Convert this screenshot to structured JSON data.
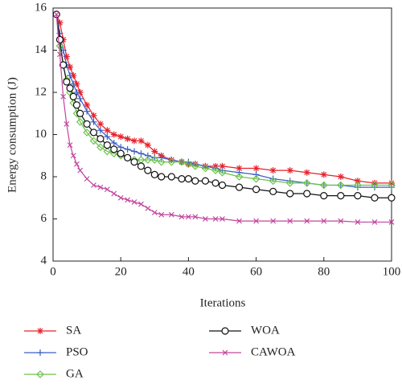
{
  "chart_data": {
    "type": "line",
    "xlabel": "Iterations",
    "ylabel": "Energy consumption (J)",
    "xlim": [
      0,
      100
    ],
    "ylim": [
      4,
      16
    ],
    "xticks": [
      0,
      20,
      40,
      60,
      80,
      100
    ],
    "yticks": [
      4,
      6,
      8,
      10,
      12,
      14,
      16
    ],
    "x": [
      1,
      2,
      3,
      4,
      5,
      6,
      7,
      8,
      10,
      12,
      14,
      16,
      18,
      20,
      22,
      24,
      26,
      28,
      30,
      32,
      35,
      38,
      40,
      42,
      45,
      48,
      50,
      55,
      60,
      65,
      70,
      75,
      80,
      85,
      90,
      95,
      100
    ],
    "series": [
      {
        "name": "SA",
        "color": "#e8202a",
        "marker": "asterisk",
        "values": [
          15.7,
          15.3,
          14.5,
          13.7,
          13.2,
          12.8,
          12.4,
          12.0,
          11.4,
          10.9,
          10.5,
          10.2,
          10.0,
          9.9,
          9.8,
          9.7,
          9.7,
          9.5,
          9.2,
          9.0,
          8.8,
          8.7,
          8.6,
          8.6,
          8.5,
          8.5,
          8.5,
          8.4,
          8.4,
          8.3,
          8.3,
          8.2,
          8.1,
          8.0,
          7.8,
          7.7,
          7.7
        ]
      },
      {
        "name": "PSO",
        "color": "#3a5fc8",
        "marker": "plus",
        "values": [
          15.7,
          14.8,
          14.0,
          13.3,
          12.8,
          12.4,
          12.0,
          11.7,
          11.1,
          10.6,
          10.2,
          9.9,
          9.6,
          9.4,
          9.3,
          9.2,
          9.1,
          9.0,
          8.9,
          8.9,
          8.8,
          8.7,
          8.7,
          8.6,
          8.5,
          8.4,
          8.3,
          8.2,
          8.1,
          7.9,
          7.8,
          7.7,
          7.6,
          7.6,
          7.5,
          7.5,
          7.5
        ]
      },
      {
        "name": "GA",
        "color": "#6cc24a",
        "marker": "diamond",
        "values": [
          15.7,
          14.2,
          13.3,
          12.6,
          12.0,
          11.5,
          11.0,
          10.6,
          10.1,
          9.7,
          9.4,
          9.2,
          9.1,
          9.0,
          8.9,
          8.8,
          8.8,
          8.8,
          8.8,
          8.7,
          8.7,
          8.7,
          8.6,
          8.5,
          8.4,
          8.3,
          8.2,
          8.0,
          7.9,
          7.8,
          7.7,
          7.7,
          7.6,
          7.6,
          7.6,
          7.6,
          7.6
        ]
      },
      {
        "name": "WOA",
        "color": "#111111",
        "marker": "circle",
        "values": [
          15.7,
          14.5,
          13.3,
          12.5,
          12.2,
          11.8,
          11.4,
          11.0,
          10.5,
          10.1,
          9.8,
          9.5,
          9.3,
          9.1,
          8.9,
          8.7,
          8.5,
          8.3,
          8.1,
          8.0,
          8.0,
          7.9,
          7.9,
          7.8,
          7.8,
          7.7,
          7.6,
          7.5,
          7.4,
          7.3,
          7.2,
          7.2,
          7.1,
          7.1,
          7.1,
          7.0,
          7.0
        ]
      },
      {
        "name": "CAWOA",
        "color": "#c2449e",
        "marker": "cross",
        "values": [
          15.7,
          13.8,
          11.8,
          10.5,
          9.5,
          9.0,
          8.6,
          8.3,
          7.9,
          7.6,
          7.5,
          7.4,
          7.2,
          7.0,
          6.9,
          6.8,
          6.7,
          6.5,
          6.3,
          6.2,
          6.2,
          6.1,
          6.1,
          6.1,
          6.0,
          6.0,
          6.0,
          5.9,
          5.9,
          5.9,
          5.9,
          5.9,
          5.9,
          5.9,
          5.85,
          5.85,
          5.85
        ]
      }
    ]
  }
}
